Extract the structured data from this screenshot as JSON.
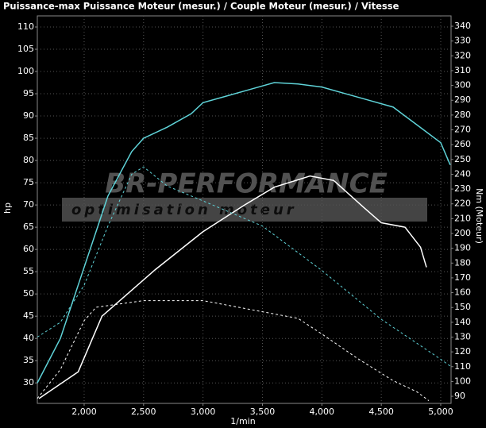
{
  "chart_data": {
    "type": "line",
    "title": "Puissance-max Puissance Moteur (mesur.) / Couple Moteur (mesur.) / Vitesse",
    "xlabel": "1/min",
    "ylabel": "hp",
    "y2label": "Nm (Moteur)",
    "watermark": {
      "title": "BR-PERFORMANCE",
      "subtitle": "optimisation moteur"
    },
    "xlim": [
      1606,
      5087
    ],
    "xticks": [
      {
        "value": 2000,
        "label": "2,000"
      },
      {
        "value": 2500,
        "label": "2,500"
      },
      {
        "value": 3000,
        "label": "3,000"
      },
      {
        "value": 3500,
        "label": "3,500"
      },
      {
        "value": 4000,
        "label": "4,000"
      },
      {
        "value": 4500,
        "label": "4,500"
      },
      {
        "value": 5000,
        "label": "5,000"
      }
    ],
    "ylim": [
      25.4,
      112.5
    ],
    "yticks": [
      30,
      35,
      40,
      45,
      50,
      55,
      60,
      65,
      70,
      75,
      80,
      85,
      90,
      95,
      100,
      105,
      110
    ],
    "y2lim": [
      85.2,
      347
    ],
    "y2ticks": [
      90,
      100,
      110,
      120,
      130,
      140,
      150,
      160,
      170,
      180,
      190,
      200,
      210,
      220,
      230,
      240,
      250,
      260,
      270,
      280,
      290,
      300,
      310,
      320,
      330,
      340
    ],
    "grid": true,
    "series": [
      {
        "color": "#5fd3d8",
        "dash": false,
        "axis": "y",
        "x": [
          1606,
          1800,
          2000,
          2200,
          2400,
          2500,
          2700,
          2900,
          3000,
          3200,
          3400,
          3600,
          3800,
          4000,
          4200,
          4400,
          4600,
          4800,
          5000,
          5080
        ],
        "values": [
          30,
          40,
          56,
          72,
          82,
          85,
          87.5,
          90.5,
          93,
          94.5,
          96,
          97.5,
          97.2,
          96.5,
          95,
          93.5,
          92,
          88,
          84,
          79
        ]
      },
      {
        "color": "#ffffff",
        "dash": false,
        "axis": "y",
        "x": [
          1620,
          1950,
          2150,
          2600,
          3000,
          3350,
          3600,
          3900,
          4100,
          4350,
          4500,
          4700,
          4830,
          4880
        ],
        "values": [
          26.5,
          32.5,
          45,
          55.5,
          64,
          70,
          74,
          76.5,
          75.5,
          69.5,
          66,
          65,
          60.5,
          56
        ]
      },
      {
        "color": "#5fd3d8",
        "dash": true,
        "axis": "y2",
        "x": [
          1606,
          1800,
          2000,
          2200,
          2400,
          2500,
          2700,
          3000,
          3500,
          4000,
          4500,
          5000,
          5087
        ],
        "values": [
          130,
          140,
          165,
          205,
          240,
          245,
          232,
          222,
          205,
          175,
          142,
          115,
          110
        ]
      },
      {
        "color": "#ffffff",
        "dash": true,
        "axis": "y",
        "x": [
          1606,
          1800,
          2000,
          2100,
          2500,
          3000,
          3500,
          3800,
          4000,
          4300,
          4600,
          4800,
          4900
        ],
        "values": [
          26.5,
          33,
          44,
          47,
          48.5,
          48.5,
          46,
          44.5,
          41,
          35.5,
          30.5,
          28,
          26
        ]
      }
    ]
  }
}
